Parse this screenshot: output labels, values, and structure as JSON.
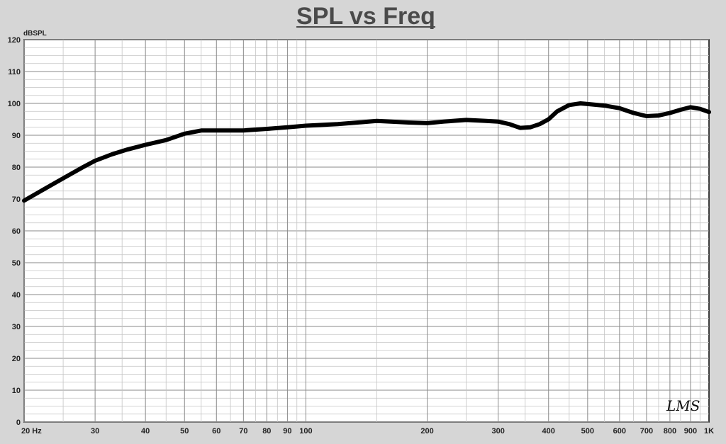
{
  "chart_data": {
    "type": "line",
    "title": "SPL vs Freq",
    "ylabel": "dBSPL",
    "xlabel": "",
    "x_scale": "log",
    "xlim": [
      20,
      1000
    ],
    "ylim": [
      0,
      120
    ],
    "grid": true,
    "y_ticks": [
      0,
      10,
      20,
      30,
      40,
      50,
      60,
      70,
      80,
      90,
      100,
      110,
      120
    ],
    "x_ticks": [
      {
        "value": 20,
        "label": "20 Hz"
      },
      {
        "value": 30,
        "label": "30"
      },
      {
        "value": 40,
        "label": "40"
      },
      {
        "value": 50,
        "label": "50"
      },
      {
        "value": 60,
        "label": "60"
      },
      {
        "value": 70,
        "label": "70"
      },
      {
        "value": 80,
        "label": "80"
      },
      {
        "value": 90,
        "label": "90"
      },
      {
        "value": 100,
        "label": "100"
      },
      {
        "value": 200,
        "label": "200"
      },
      {
        "value": 300,
        "label": "300"
      },
      {
        "value": 400,
        "label": "400"
      },
      {
        "value": 500,
        "label": "500"
      },
      {
        "value": 600,
        "label": "600"
      },
      {
        "value": 700,
        "label": "700"
      },
      {
        "value": 800,
        "label": "800"
      },
      {
        "value": 900,
        "label": "900"
      },
      {
        "value": 1000,
        "label": "1K"
      }
    ],
    "series": [
      {
        "color": "#000000",
        "x": [
          20,
          22,
          25,
          28,
          30,
          33,
          36,
          40,
          45,
          50,
          55,
          60,
          65,
          70,
          80,
          90,
          100,
          120,
          150,
          180,
          200,
          220,
          250,
          280,
          300,
          320,
          340,
          360,
          380,
          400,
          420,
          450,
          480,
          500,
          550,
          600,
          650,
          700,
          750,
          800,
          850,
          900,
          950,
          1000
        ],
        "y": [
          69.5,
          72.5,
          76.5,
          80,
          82,
          84,
          85.5,
          87,
          88.5,
          90.5,
          91.5,
          91.5,
          91.5,
          91.5,
          92,
          92.5,
          93,
          93.5,
          94.5,
          94,
          93.8,
          94.3,
          94.8,
          94.5,
          94.3,
          93.5,
          92.3,
          92.5,
          93.5,
          95,
          97.5,
          99.5,
          100,
          99.8,
          99.3,
          98.5,
          97,
          96,
          96.2,
          97,
          98,
          98.8,
          98.3,
          97.3
        ]
      }
    ],
    "watermark": "LMS"
  }
}
